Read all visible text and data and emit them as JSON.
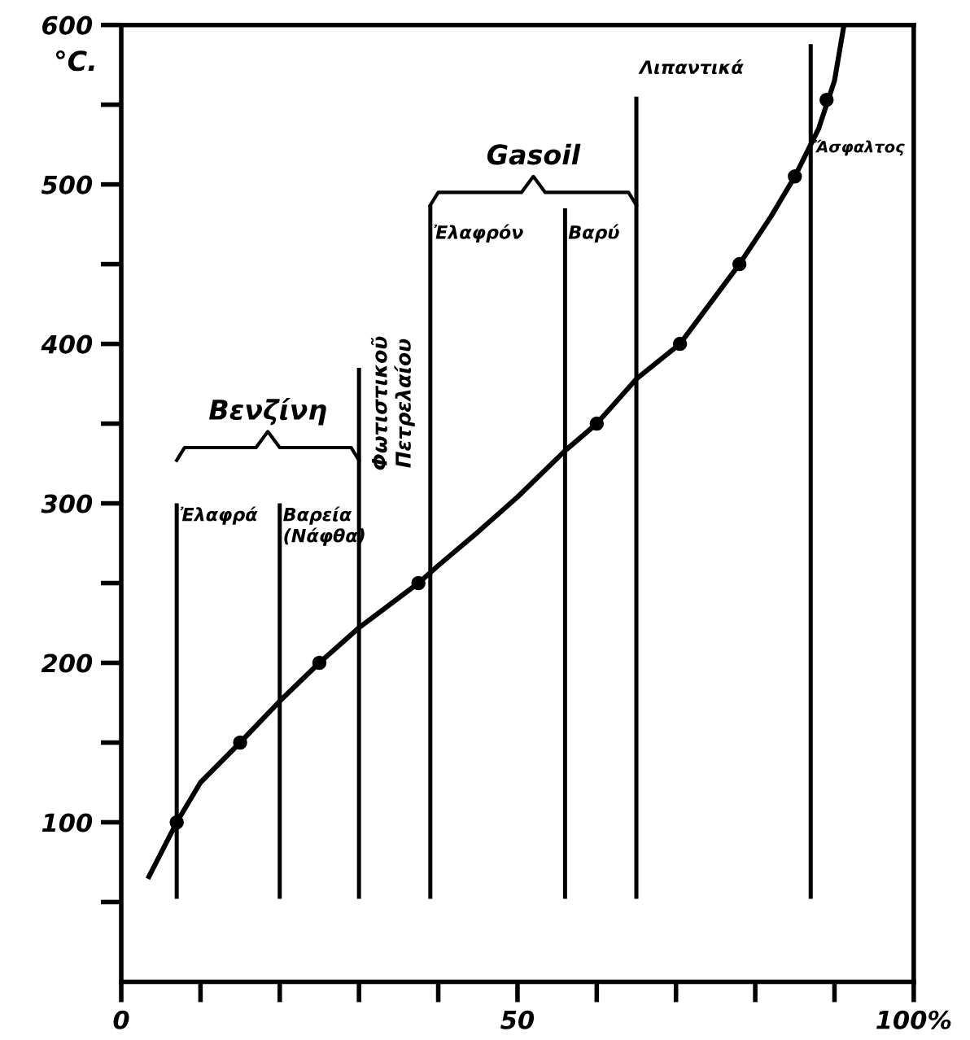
{
  "chart_data": {
    "type": "line",
    "ylabel": "°C.",
    "xlim": [
      0,
      100
    ],
    "ylim": [
      0,
      600
    ],
    "xticks": [
      0,
      {
        "value": 10,
        "label": null
      },
      {
        "value": 20,
        "label": null
      },
      {
        "value": 30,
        "label": null
      },
      {
        "value": 40,
        "label": null
      },
      50,
      {
        "value": 60,
        "label": null
      },
      {
        "value": 70,
        "label": null
      },
      {
        "value": 80,
        "label": null
      },
      {
        "value": 90,
        "label": null
      },
      {
        "value": 100,
        "label": "100%"
      }
    ],
    "yticks": [
      {
        "value": 50,
        "label": null
      },
      100,
      {
        "value": 150,
        "label": null
      },
      200,
      {
        "value": 250,
        "label": null
      },
      300,
      {
        "value": 350,
        "label": null
      },
      400,
      {
        "value": 450,
        "label": null
      },
      500,
      {
        "value": 550,
        "label": null
      },
      600
    ],
    "grid": false,
    "series": [
      {
        "color": "#000000",
        "marker": "none",
        "line_style": "solid",
        "x": [
          3.5,
          7,
          10,
          15,
          20,
          25,
          30,
          37.5,
          40,
          45,
          50,
          56,
          60,
          65,
          70.5,
          78,
          82,
          85,
          88,
          90,
          91.2
        ],
        "values": [
          66,
          100,
          125,
          150,
          176,
          200,
          222,
          250,
          261,
          282,
          304,
          333,
          350,
          378,
          400,
          450,
          480,
          505,
          535,
          565,
          600
        ]
      },
      {
        "type": "scatter",
        "color": "#000000",
        "marker": "circle",
        "x": [
          7,
          15,
          25,
          37.5,
          60,
          70.5,
          78,
          85,
          89
        ],
        "values": [
          100,
          150,
          200,
          250,
          350,
          400,
          450,
          505,
          553
        ]
      }
    ],
    "ref_lines": [
      {
        "axis": "x",
        "value": 7,
        "label": "Ἐλαφρά"
      },
      {
        "axis": "x",
        "value": 20,
        "label": "Βαρεία\n(Νάφθα)"
      },
      {
        "axis": "x",
        "value": 30,
        "label": "Φωτιστικοῦ\nΠετρελαίου"
      },
      {
        "axis": "x",
        "value": 39,
        "label": "Ἐλαφρόν"
      },
      {
        "axis": "x",
        "value": 56,
        "label": "Βαρύ"
      },
      {
        "axis": "x",
        "value": 65,
        "label": "Λιπαντικά"
      },
      {
        "axis": "x",
        "value": 87,
        "label": "Ἄσφαλτος"
      }
    ],
    "annotations": [
      "Βενζίνη",
      "Gasoil"
    ]
  }
}
